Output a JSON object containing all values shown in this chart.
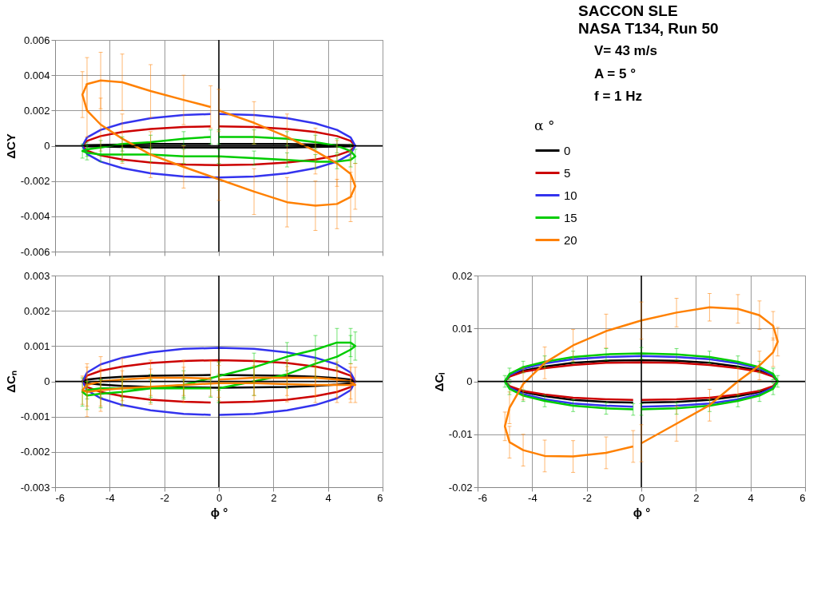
{
  "chart_data": [
    {
      "type": "line",
      "ylabel": "ΔCY",
      "xlim": [
        -6,
        6
      ],
      "xticks": [
        -6,
        -4,
        -2,
        0,
        2,
        4,
        6
      ],
      "ylim": [
        -0.006,
        0.006
      ],
      "yticks": [
        -0.006,
        -0.004,
        -0.002,
        0,
        0.002,
        0.004,
        0.006
      ],
      "grid": true,
      "legend": "right",
      "legend_title": "α °",
      "tick_labels": "y",
      "x": [
        0,
        1.29,
        2.5,
        3.54,
        4.33,
        4.83,
        5,
        4.83,
        4.33,
        3.54,
        2.5,
        1.29,
        0,
        -1.29,
        -2.5,
        -3.54,
        -4.33,
        -4.83,
        -5,
        -4.83,
        -4.33,
        -3.54,
        -2.5,
        -1.29,
        -0.3
      ],
      "series": [
        {
          "name": "0",
          "color": "#000000",
          "values": [
            0.0001,
            0.0001,
            0.0001,
            7e-05,
            5e-05,
            3e-05,
            0,
            -3e-05,
            -5e-05,
            -7e-05,
            -0.0001,
            -0.0001,
            -0.0001,
            -0.0001,
            -0.0001,
            -7e-05,
            -5e-05,
            -3e-05,
            0,
            3e-05,
            5e-05,
            7e-05,
            0.0001,
            0.0001,
            0.0001
          ]
        },
        {
          "name": "5",
          "color": "#cc0000",
          "values": [
            0.0011,
            0.00106,
            0.00095,
            0.00078,
            0.00055,
            0.00028,
            0,
            -0.00028,
            -0.00055,
            -0.00078,
            -0.00095,
            -0.00106,
            -0.0011,
            -0.00106,
            -0.00095,
            -0.00078,
            -0.00055,
            -0.00028,
            0,
            0.00028,
            0.00055,
            0.00078,
            0.00095,
            0.00106,
            0.0011
          ]
        },
        {
          "name": "10",
          "color": "#3333ee",
          "values": [
            0.0018,
            0.00174,
            0.00156,
            0.00127,
            0.0009,
            0.00047,
            0,
            -0.00047,
            -0.0009,
            -0.00127,
            -0.00156,
            -0.00174,
            -0.0018,
            -0.00174,
            -0.00156,
            -0.00127,
            -0.0009,
            -0.00047,
            0,
            0.00047,
            0.0009,
            0.00127,
            0.00156,
            0.00174,
            0.0018
          ]
        },
        {
          "name": "15",
          "color": "#00cc00",
          "values": [
            0.0005,
            0.0005,
            0.0004,
            0.0002,
            0,
            -0.0003,
            -0.0006,
            -0.0008,
            -0.0009,
            -0.0009,
            -0.0008,
            -0.0007,
            -0.0006,
            -0.0006,
            -0.0005,
            -0.0005,
            -0.0005,
            -0.0004,
            -0.0003,
            -0.0002,
            -0.0001,
            0.0001,
            0.0002,
            0.0004,
            0.0005
          ],
          "errors": [
            0.0004,
            0.0004,
            0.0004,
            0.0004,
            0.0004,
            0.0004,
            0.0004,
            0.0004,
            0.0004,
            0.0004,
            0.0004,
            0.0004,
            0.0004,
            0.0004,
            0.0004,
            0.0004,
            0.0004,
            0.0004,
            0.0004,
            0.0004,
            0.0004,
            0.0004,
            0.0004,
            0.0004,
            0.0004
          ]
        },
        {
          "name": "20",
          "color": "#ff8000",
          "values": [
            0.002,
            0.0013,
            0.0005,
            -0.0003,
            -0.001,
            -0.0016,
            -0.0023,
            -0.0029,
            -0.0033,
            -0.0034,
            -0.0032,
            -0.0026,
            -0.0019,
            -0.0012,
            -0.0005,
            0.0004,
            0.0012,
            0.002,
            0.0029,
            0.0035,
            0.0037,
            0.0036,
            0.0031,
            0.0026,
            0.0022
          ],
          "errors": [
            0.0012,
            0.0012,
            0.0013,
            0.0013,
            0.0013,
            0.0013,
            0.0013,
            0.0014,
            0.0014,
            0.0014,
            0.0014,
            0.0013,
            0.0012,
            0.0012,
            0.0013,
            0.0014,
            0.0015,
            0.0015,
            0.0013,
            0.0015,
            0.0016,
            0.0016,
            0.0015,
            0.0014,
            0.0012
          ]
        }
      ]
    },
    {
      "type": "other",
      "title": "SACCON SLE",
      "subtitle": "NASA T134, Run 50",
      "annotations": [
        "V= 43 m/s",
        "A = 5 °",
        "f = 1 Hz"
      ]
    },
    {
      "type": "line",
      "xlabel": "ϕ °",
      "ylabel": "ΔCₙ",
      "xlim": [
        -6,
        6
      ],
      "xticks": [
        -6,
        -4,
        -2,
        0,
        2,
        4,
        6
      ],
      "ylim": [
        -0.003,
        0.003
      ],
      "yticks": [
        -0.003,
        -0.002,
        -0.001,
        0,
        0.001,
        0.002,
        0.003
      ],
      "grid": true,
      "x": [
        0,
        1.29,
        2.5,
        3.54,
        4.33,
        4.83,
        5,
        4.83,
        4.33,
        3.54,
        2.5,
        1.29,
        0,
        -1.29,
        -2.5,
        -3.54,
        -4.33,
        -4.83,
        -5,
        -4.83,
        -4.33,
        -3.54,
        -2.5,
        -1.29,
        -0.3
      ],
      "series": [
        {
          "color": "#000000",
          "values": [
            0.00018,
            0.00017,
            0.00016,
            0.00013,
            9e-05,
            5e-05,
            0,
            -5e-05,
            -9e-05,
            -0.00013,
            -0.00016,
            -0.00017,
            -0.00018,
            -0.00017,
            -0.00016,
            -0.00013,
            -9e-05,
            -5e-05,
            0,
            5e-05,
            9e-05,
            0.00013,
            0.00016,
            0.00017,
            0.00018
          ]
        },
        {
          "color": "#cc0000",
          "values": [
            -0.0006,
            -0.00058,
            -0.00052,
            -0.00042,
            -0.0003,
            -0.00016,
            0,
            0.00016,
            0.0003,
            0.00042,
            0.00052,
            0.00058,
            0.0006,
            0.00058,
            0.00052,
            0.00042,
            0.0003,
            0.00016,
            0,
            -0.00016,
            -0.0003,
            -0.00042,
            -0.00052,
            -0.00058,
            -0.0006
          ]
        },
        {
          "color": "#3333ee",
          "values": [
            -0.00095,
            -0.00092,
            -0.00082,
            -0.00067,
            -0.00048,
            -0.00025,
            0,
            0.00025,
            0.00048,
            0.00067,
            0.00082,
            0.00092,
            0.00095,
            0.00092,
            0.00082,
            0.00067,
            0.00048,
            0.00025,
            0,
            -0.00025,
            -0.00048,
            -0.00067,
            -0.00082,
            -0.00092,
            -0.00095
          ]
        },
        {
          "color": "#00cc00",
          "values": [
            -0.0002,
            0,
            0.0002,
            0.0005,
            0.0007,
            0.0009,
            0.001,
            0.0011,
            0.0011,
            0.0009,
            0.0007,
            0.0004,
            0.00015,
            -0.0001,
            -0.0002,
            -0.0003,
            -0.00035,
            -0.0004,
            -0.0003,
            -0.00025,
            -0.0002,
            -0.0002,
            -0.0002,
            -0.0002,
            -0.0002
          ],
          "errors": [
            0.0004,
            0.0004,
            0.0004,
            0.0004,
            0.0004,
            0.0004,
            0.0004,
            0.0004,
            0.0004,
            0.0004,
            0.0004,
            0.0004,
            0.0004,
            0.0004,
            0.0004,
            0.0004,
            0.0004,
            0.0004,
            0.0004,
            0.00025,
            0.00025,
            0.00025,
            0.00025,
            0.00025,
            0.00025
          ]
        },
        {
          "color": "#ff8000",
          "values": [
            5e-05,
            0.0001,
            0.0001,
            0.0001,
            5e-05,
            0,
            -0.0001,
            -0.0001,
            -0.0001,
            -0.0001,
            -8e-05,
            -5e-05,
            -5e-05,
            -0.0001,
            -0.00015,
            -0.0002,
            -0.00025,
            -0.0003,
            -0.00025,
            -0.0001,
            0,
            5e-05,
            0.0001,
            0.0001,
            8e-05
          ],
          "errors": [
            0.0005,
            0.0005,
            0.0005,
            0.0005,
            0.0005,
            0.0005,
            0.0005,
            0.0005,
            0.0005,
            0.0005,
            0.0005,
            0.0005,
            0.0005,
            0.0005,
            0.0005,
            0.0005,
            0.0006,
            0.0007,
            0.0004,
            0.0006,
            0.0007,
            0.0006,
            0.0005,
            0.0005,
            0.0005
          ]
        }
      ]
    },
    {
      "type": "line",
      "xlabel": "ϕ °",
      "ylabel": "ΔCₗ",
      "xlim": [
        -6,
        6
      ],
      "xticks": [
        -6,
        -4,
        -2,
        0,
        2,
        4,
        6
      ],
      "ylim": [
        -0.02,
        0.02
      ],
      "yticks": [
        -0.02,
        -0.01,
        0,
        0.01,
        0.02
      ],
      "grid": true,
      "x": [
        0,
        1.29,
        2.5,
        3.54,
        4.33,
        4.83,
        5,
        4.83,
        4.33,
        3.54,
        2.5,
        1.29,
        0,
        -1.29,
        -2.5,
        -3.54,
        -4.33,
        -4.83,
        -5,
        -4.83,
        -4.33,
        -3.54,
        -2.5,
        -1.29,
        -0.3
      ],
      "series": [
        {
          "color": "#000000",
          "values": [
            -0.004,
            -0.0039,
            -0.0035,
            -0.0028,
            -0.002,
            -0.001,
            0,
            0.001,
            0.002,
            0.0028,
            0.0035,
            0.0039,
            0.004,
            0.0039,
            0.0035,
            0.0028,
            0.002,
            0.001,
            0,
            -0.001,
            -0.002,
            -0.0028,
            -0.0035,
            -0.0039,
            -0.004
          ]
        },
        {
          "color": "#cc0000",
          "values": [
            -0.0035,
            -0.0034,
            -0.0031,
            -0.0025,
            -0.0018,
            -0.0009,
            0,
            0.0009,
            0.0018,
            0.0025,
            0.0031,
            0.0035,
            0.0036,
            0.0035,
            0.0031,
            0.0025,
            0.0018,
            0.0009,
            0,
            -0.0009,
            -0.0018,
            -0.0025,
            -0.0031,
            -0.0034,
            -0.0035
          ]
        },
        {
          "color": "#3333ee",
          "values": [
            -0.0048,
            -0.0046,
            -0.0042,
            -0.0034,
            -0.0024,
            -0.0012,
            0,
            0.0012,
            0.0024,
            0.0034,
            0.0042,
            0.0046,
            0.0048,
            0.0046,
            0.0042,
            0.0034,
            0.0024,
            0.0012,
            0,
            -0.0012,
            -0.0024,
            -0.0034,
            -0.0042,
            -0.0046,
            -0.0048
          ]
        },
        {
          "color": "#00cc00",
          "values": [
            -0.0053,
            -0.0051,
            -0.0046,
            -0.0037,
            -0.0027,
            -0.0014,
            0,
            0.0014,
            0.0027,
            0.0037,
            0.0046,
            0.0051,
            0.0053,
            0.0051,
            0.0046,
            0.0037,
            0.0027,
            0.0014,
            0,
            -0.0014,
            -0.0027,
            -0.0037,
            -0.0046,
            -0.0051,
            -0.0053
          ],
          "errors": [
            0.0011,
            0.0011,
            0.0011,
            0.0011,
            0.0011,
            0.0011,
            0.0011,
            0.0011,
            0.0011,
            0.0011,
            0.0011,
            0.0011,
            0.0011,
            0.0011,
            0.0011,
            0.0011,
            0.0011,
            0.0011,
            0.0011,
            0.0011,
            0.0011,
            0.0011,
            0.0011,
            0.0011,
            0.0011
          ]
        },
        {
          "color": "#ff8000",
          "values": [
            -0.0117,
            -0.008,
            -0.0045,
            0,
            0.003,
            0.0055,
            0.0075,
            0.0105,
            0.0125,
            0.0137,
            0.014,
            0.013,
            0.0115,
            0.0095,
            0.0068,
            0.0035,
            -0.0005,
            -0.005,
            -0.0085,
            -0.0115,
            -0.013,
            -0.0141,
            -0.0142,
            -0.0135,
            -0.0123
          ],
          "errors": [
            0.0035,
            0.0033,
            0.003,
            0.0025,
            0.0027,
            0.0027,
            0.0027,
            0.0027,
            0.0027,
            0.0027,
            0.0026,
            0.0027,
            0.0035,
            0.0032,
            0.003,
            0.003,
            0.003,
            0.003,
            0.0027,
            0.003,
            0.003,
            0.003,
            0.003,
            0.003,
            0.003
          ]
        }
      ]
    }
  ]
}
